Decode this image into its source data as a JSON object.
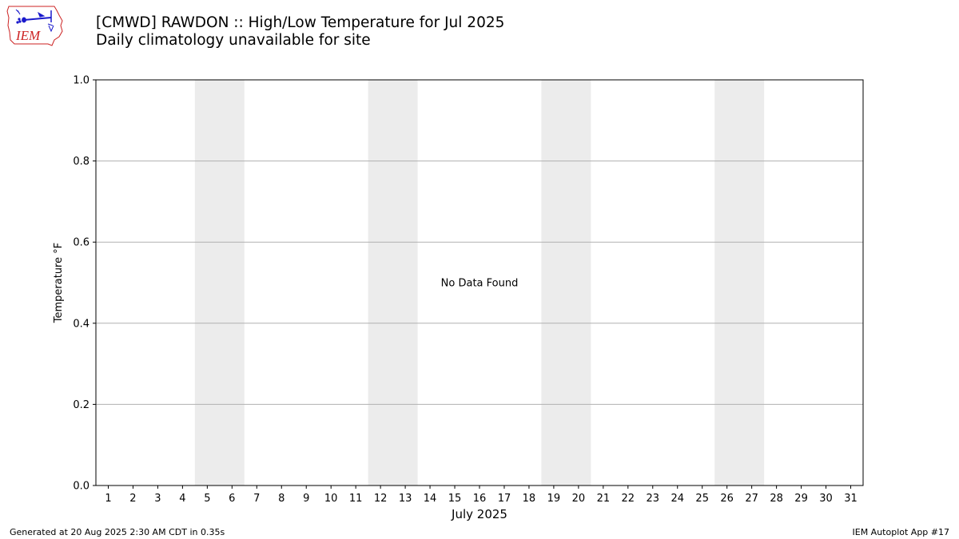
{
  "header": {
    "title": "[CMWD] RAWDON :: High/Low Temperature for Jul 2025",
    "subtitle": "Daily climatology unavailable for site",
    "logo_text": "IEM"
  },
  "footer": {
    "generated": "Generated at 20 Aug 2025 2:30 AM CDT in 0.35s",
    "app": "IEM Autoplot App #17"
  },
  "colors": {
    "weekend_band": "#ececec",
    "grid": "#b0b0b0",
    "logo_red": "#cc2222",
    "logo_blue": "#1a1acc"
  },
  "chart_data": {
    "type": "line",
    "title": "[CMWD] RAWDON :: High/Low Temperature for Jul 2025",
    "subtitle": "Daily climatology unavailable for site",
    "xlabel": "July 2025",
    "ylabel": "Temperature °F",
    "categories": [
      "1",
      "2",
      "3",
      "4",
      "5",
      "6",
      "7",
      "8",
      "9",
      "10",
      "11",
      "12",
      "13",
      "14",
      "15",
      "16",
      "17",
      "18",
      "19",
      "20",
      "21",
      "22",
      "23",
      "24",
      "25",
      "26",
      "27",
      "28",
      "29",
      "30",
      "31"
    ],
    "xlim": [
      0.5,
      31.5
    ],
    "ylim": [
      0.0,
      1.0
    ],
    "yticks": [
      "0.0",
      "0.2",
      "0.4",
      "0.6",
      "0.8",
      "1.0"
    ],
    "ytick_values": [
      0.0,
      0.2,
      0.4,
      0.6,
      0.8,
      1.0
    ],
    "weekend_bands": [
      [
        4.5,
        6.5
      ],
      [
        11.5,
        13.5
      ],
      [
        18.5,
        20.5
      ],
      [
        25.5,
        27.5
      ]
    ],
    "grid": "horizontal",
    "series": [],
    "annotation": "No Data Found"
  }
}
